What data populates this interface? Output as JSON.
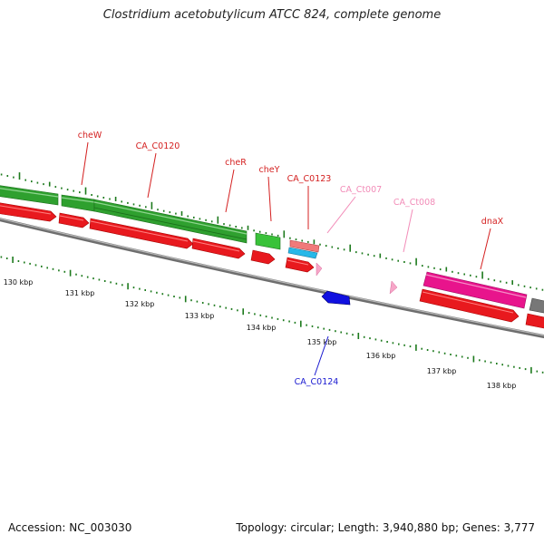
{
  "header": {
    "title": "Clostridium acetobutylicum ATCC 824, complete genome"
  },
  "footer": {
    "accession": "Accession: NC_003030",
    "summary": "Topology: circular; Length: 3,940,880 bp; Genes: 3,777"
  },
  "colors": {
    "gene_red": "#e8191e",
    "gene_green": "#2fa02f",
    "trna_pink": "#f7a6c8",
    "rrna_magenta": "#e8148c",
    "misc_blue": "#1010e0",
    "misc_cyan": "#27b8e8",
    "misc_salmon": "#f07a7a",
    "backbone_grey": "#888888",
    "tick_green": "#1d7a1d"
  },
  "scale": {
    "unit": "kbp",
    "ticks": [
      {
        "label": "130 kbp",
        "value": 130
      },
      {
        "label": "131 kbp",
        "value": 131
      },
      {
        "label": "132 kbp",
        "value": 132
      },
      {
        "label": "133 kbp",
        "value": 133
      },
      {
        "label": "134 kbp",
        "value": 134
      },
      {
        "label": "135 kbp",
        "value": 135
      },
      {
        "label": "136 kbp",
        "value": 136
      },
      {
        "label": "137 kbp",
        "value": 137
      },
      {
        "label": "138 kbp",
        "value": 138
      }
    ]
  },
  "gene_labels": [
    {
      "name": "cheW",
      "color": "#d42020"
    },
    {
      "name": "CA_C0120",
      "color": "#d42020"
    },
    {
      "name": "cheR",
      "color": "#d42020"
    },
    {
      "name": "cheY",
      "color": "#d42020"
    },
    {
      "name": "CA_C0123",
      "color": "#d42020"
    },
    {
      "name": "CA_Ct007",
      "color": "#f28cb8"
    },
    {
      "name": "CA_Ct008",
      "color": "#f28cb8"
    },
    {
      "name": "dnaX",
      "color": "#d42020"
    },
    {
      "name": "CA_C0124",
      "color": "#1a1ad0"
    }
  ]
}
